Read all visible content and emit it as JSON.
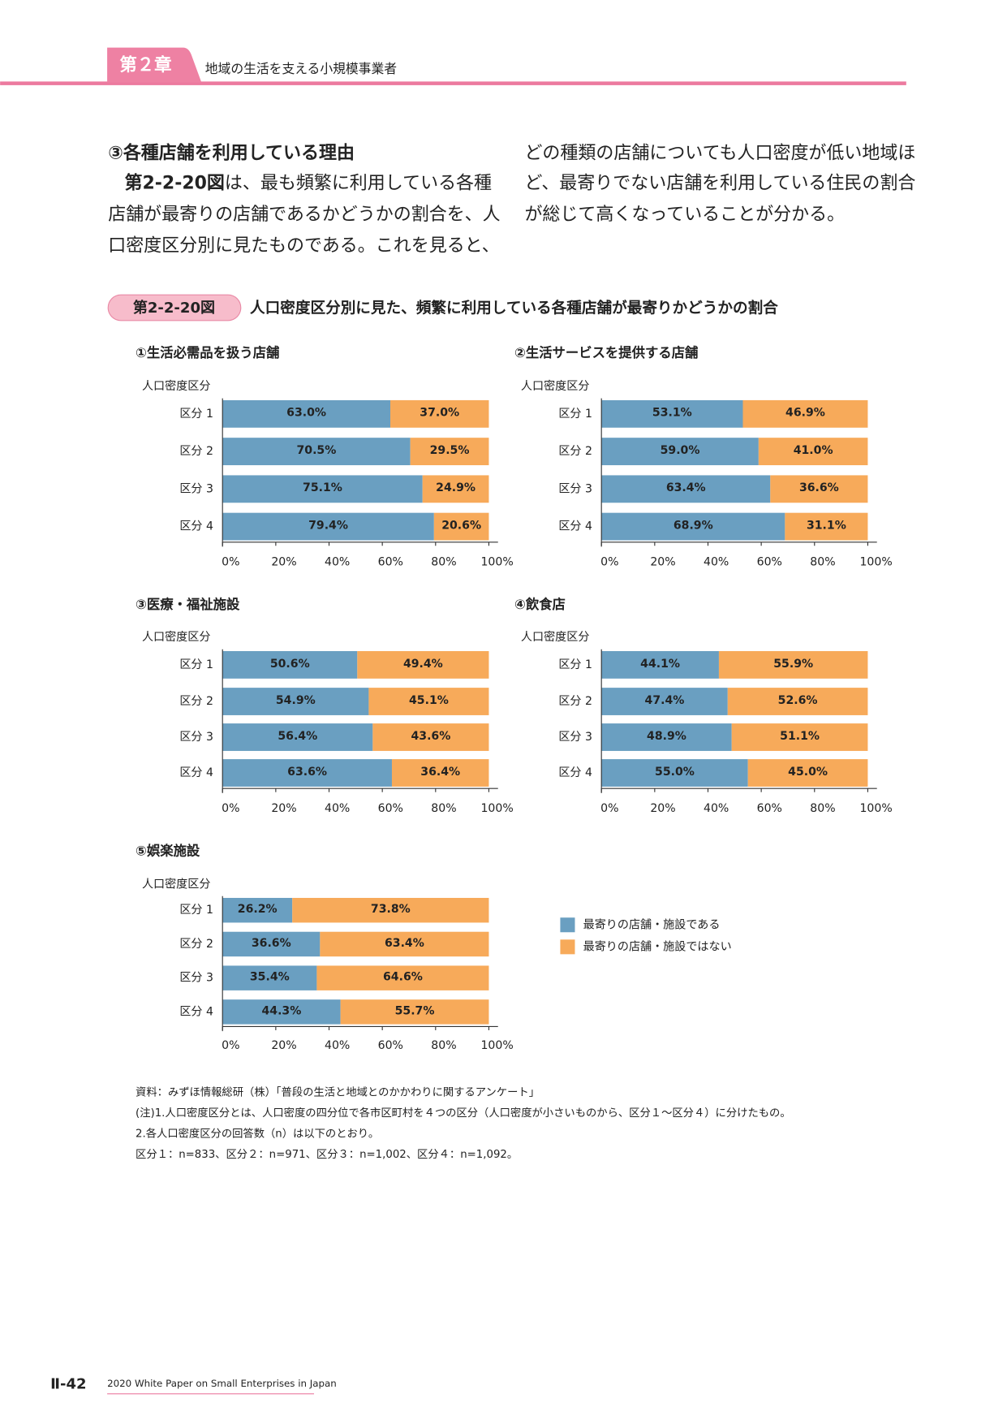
{
  "header": {
    "chapter": "第２章",
    "title": "地域の生活を支える小規模事業者"
  },
  "body": {
    "heading": "③各種店舗を利用している理由",
    "lead": "第2-2-20図",
    "first_line": "は、最も頻繁に利用している各種",
    "left_lines": [
      "店舗が最寄りの店舗であるかどうかの割合を、人",
      "口密度区分別に見たものである。これを見ると、"
    ],
    "right_lines": [
      "どの種類の店舗についても人口密度が低い地域ほ",
      "ど、最寄りでない店舗を利用している住民の割合",
      "が総じて高くなっていることが分かる。"
    ]
  },
  "figure": {
    "number": "第2-2-20図",
    "title": "人口密度区分別に見た、頻繁に利用している各種店舗が最寄りかどうかの割合"
  },
  "legend": [
    {
      "name": "最寄りの店舗・施設である",
      "color": "#6a9fc1"
    },
    {
      "name": "最寄りの店舗・施設ではない",
      "color": "#f7aa5a"
    }
  ],
  "chart_data": [
    {
      "type": "bar",
      "orientation": "horizontal",
      "stacked": true,
      "title": "①生活必需品を扱う店舗",
      "category_axis_title": "人口密度区分",
      "categories": [
        "区分 1",
        "区分 2",
        "区分 3",
        "区分 4"
      ],
      "series": [
        {
          "values": [
            63.0,
            70.5,
            75.1,
            79.4
          ],
          "value_labels": [
            "63.0%",
            "70.5%",
            "75.1%",
            "79.4%"
          ]
        },
        {
          "values": [
            37.0,
            29.5,
            24.9,
            20.6
          ],
          "value_labels": [
            "37.0%",
            "29.5%",
            "24.9%",
            "20.6%"
          ]
        }
      ],
      "xlim": [
        0,
        100
      ],
      "xticks": [
        {
          "value": 0,
          "label": "0%"
        },
        {
          "value": 20,
          "label": "20%"
        },
        {
          "value": 40,
          "label": "40%"
        },
        {
          "value": 60,
          "label": "60%"
        },
        {
          "value": 80,
          "label": "80%"
        },
        {
          "value": 100,
          "label": "100%"
        }
      ]
    },
    {
      "type": "bar",
      "orientation": "horizontal",
      "stacked": true,
      "title": "②生活サービスを提供する店舗",
      "category_axis_title": "人口密度区分",
      "categories": [
        "区分 1",
        "区分 2",
        "区分 3",
        "区分 4"
      ],
      "series": [
        {
          "values": [
            53.1,
            59.0,
            63.4,
            68.9
          ],
          "value_labels": [
            "53.1%",
            "59.0%",
            "63.4%",
            "68.9%"
          ]
        },
        {
          "values": [
            46.9,
            41.0,
            36.6,
            31.1
          ],
          "value_labels": [
            "46.9%",
            "41.0%",
            "36.6%",
            "31.1%"
          ]
        }
      ],
      "xlim": [
        0,
        100
      ],
      "xticks": [
        {
          "value": 0,
          "label": "0%"
        },
        {
          "value": 20,
          "label": "20%"
        },
        {
          "value": 40,
          "label": "40%"
        },
        {
          "value": 60,
          "label": "60%"
        },
        {
          "value": 80,
          "label": "80%"
        },
        {
          "value": 100,
          "label": "100%"
        }
      ]
    },
    {
      "type": "bar",
      "orientation": "horizontal",
      "stacked": true,
      "title": "③医療・福祉施設",
      "category_axis_title": "人口密度区分",
      "categories": [
        "区分 1",
        "区分 2",
        "区分 3",
        "区分 4"
      ],
      "series": [
        {
          "values": [
            50.6,
            54.9,
            56.4,
            63.6
          ],
          "value_labels": [
            "50.6%",
            "54.9%",
            "56.4%",
            "63.6%"
          ]
        },
        {
          "values": [
            49.4,
            45.1,
            43.6,
            36.4
          ],
          "value_labels": [
            "49.4%",
            "45.1%",
            "43.6%",
            "36.4%"
          ]
        }
      ],
      "xlim": [
        0,
        100
      ],
      "xticks": [
        {
          "value": 0,
          "label": "0%"
        },
        {
          "value": 20,
          "label": "20%"
        },
        {
          "value": 40,
          "label": "40%"
        },
        {
          "value": 60,
          "label": "60%"
        },
        {
          "value": 80,
          "label": "80%"
        },
        {
          "value": 100,
          "label": "100%"
        }
      ]
    },
    {
      "type": "bar",
      "orientation": "horizontal",
      "stacked": true,
      "title": "④飲食店",
      "category_axis_title": "人口密度区分",
      "categories": [
        "区分 1",
        "区分 2",
        "区分 3",
        "区分 4"
      ],
      "series": [
        {
          "values": [
            44.1,
            47.4,
            48.9,
            55.0
          ],
          "value_labels": [
            "44.1%",
            "47.4%",
            "48.9%",
            "55.0%"
          ]
        },
        {
          "values": [
            55.9,
            52.6,
            51.1,
            45.0
          ],
          "value_labels": [
            "55.9%",
            "52.6%",
            "51.1%",
            "45.0%"
          ]
        }
      ],
      "xlim": [
        0,
        100
      ],
      "xticks": [
        {
          "value": 0,
          "label": "0%"
        },
        {
          "value": 20,
          "label": "20%"
        },
        {
          "value": 40,
          "label": "40%"
        },
        {
          "value": 60,
          "label": "60%"
        },
        {
          "value": 80,
          "label": "80%"
        },
        {
          "value": 100,
          "label": "100%"
        }
      ]
    },
    {
      "type": "bar",
      "orientation": "horizontal",
      "stacked": true,
      "title": "⑤娯楽施設",
      "category_axis_title": "人口密度区分",
      "categories": [
        "区分 1",
        "区分 2",
        "区分 3",
        "区分 4"
      ],
      "series": [
        {
          "values": [
            26.2,
            36.6,
            35.4,
            44.3
          ],
          "value_labels": [
            "26.2%",
            "36.6%",
            "35.4%",
            "44.3%"
          ]
        },
        {
          "values": [
            73.8,
            63.4,
            64.6,
            55.7
          ],
          "value_labels": [
            "73.8%",
            "63.4%",
            "64.6%",
            "55.7%"
          ]
        }
      ],
      "xlim": [
        0,
        100
      ],
      "xticks": [
        {
          "value": 0,
          "label": "0%"
        },
        {
          "value": 20,
          "label": "20%"
        },
        {
          "value": 40,
          "label": "40%"
        },
        {
          "value": 60,
          "label": "60%"
        },
        {
          "value": 80,
          "label": "80%"
        },
        {
          "value": 100,
          "label": "100%"
        }
      ]
    }
  ],
  "notes": [
    "資料：みずほ情報総研（株）「普段の生活と地域とのかかわりに関するアンケート」",
    "(注)1.人口密度区分とは、人口密度の四分位で各市区町村を４つの区分（人口密度が小さいものから、区分１～区分４）に分けたもの。",
    "2.各人口密度区分の回答数（n）は以下のとおり。",
    "区分１：n=833、区分２：n=971、区分３：n=1,002、区分４：n=1,092。"
  ],
  "footer": {
    "page": "Ⅱ-42",
    "publication": "2020 White Paper on Small Enterprises in Japan"
  }
}
